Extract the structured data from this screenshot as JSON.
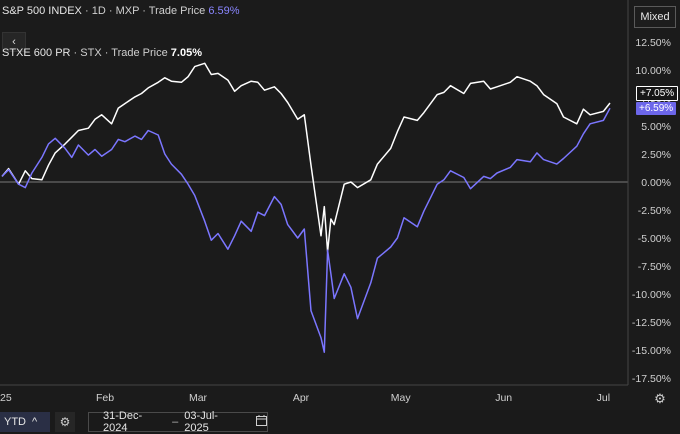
{
  "legend": {
    "spx": {
      "name": "S&P 500 INDEX",
      "sep1": "·",
      "interval": "1D",
      "sep2": "·",
      "exchange": "MXP",
      "sep3": "·",
      "field": "Trade Price",
      "value": "6.59%"
    },
    "stxe": {
      "name": "STXE 600 PR",
      "sep1": "·",
      "exchange": "STX",
      "sep2": "·",
      "field": "Trade Price",
      "value": "7.05%"
    }
  },
  "controls": {
    "mode": "Mixed",
    "collapse_icon": "‹",
    "period": "YTD",
    "period_icon": "^",
    "date_from": "31-Dec-2024",
    "date_sep": "–",
    "date_to": "03-Jul-2025"
  },
  "badges": {
    "stxe_last": "+7.05%",
    "spx_last": "+6.59%"
  },
  "colors": {
    "background": "#1b1b1b",
    "spx": "#7b76ff",
    "stxe": "#ffffff",
    "zero_line": "#9a9a9a"
  },
  "chart_data": {
    "type": "line",
    "x_ticks": [
      "25",
      "Feb",
      "Mar",
      "Apr",
      "May",
      "Jun",
      "Jul"
    ],
    "y_ticks": [
      "12.50%",
      "10.00%",
      "7.50%",
      "5.00%",
      "2.50%",
      "0.00%",
      "-2.50%",
      "-5.00%",
      "-7.50%",
      "-10.00%",
      "-12.50%",
      "-15.00%",
      "-17.50%"
    ],
    "ylim": [
      -17.5,
      12.5
    ],
    "x_range": [
      "2025-01-01",
      "2025-07-03"
    ],
    "series": [
      {
        "name": "STXE 600 PR",
        "x": [
          "2025-01-01",
          "2025-01-03",
          "2025-01-06",
          "2025-01-08",
          "2025-01-10",
          "2025-01-13",
          "2025-01-15",
          "2025-01-17",
          "2025-01-20",
          "2025-01-22",
          "2025-01-24",
          "2025-01-27",
          "2025-01-29",
          "2025-01-31",
          "2025-02-03",
          "2025-02-05",
          "2025-02-07",
          "2025-02-10",
          "2025-02-12",
          "2025-02-14",
          "2025-02-17",
          "2025-02-19",
          "2025-02-21",
          "2025-02-24",
          "2025-02-26",
          "2025-02-28",
          "2025-03-03",
          "2025-03-05",
          "2025-03-07",
          "2025-03-10",
          "2025-03-12",
          "2025-03-14",
          "2025-03-17",
          "2025-03-19",
          "2025-03-21",
          "2025-03-24",
          "2025-03-26",
          "2025-03-28",
          "2025-03-31",
          "2025-04-02",
          "2025-04-04",
          "2025-04-07",
          "2025-04-08",
          "2025-04-09",
          "2025-04-10",
          "2025-04-11",
          "2025-04-14",
          "2025-04-16",
          "2025-04-18",
          "2025-04-22",
          "2025-04-24",
          "2025-04-28",
          "2025-04-30",
          "2025-05-02",
          "2025-05-06",
          "2025-05-08",
          "2025-05-12",
          "2025-05-14",
          "2025-05-16",
          "2025-05-20",
          "2025-05-22",
          "2025-05-26",
          "2025-05-28",
          "2025-05-30",
          "2025-06-03",
          "2025-06-05",
          "2025-06-09",
          "2025-06-11",
          "2025-06-13",
          "2025-06-17",
          "2025-06-19",
          "2025-06-23",
          "2025-06-25",
          "2025-06-27",
          "2025-07-01",
          "2025-07-03"
        ],
        "y": [
          0.5,
          1.2,
          -0.2,
          1.0,
          0.3,
          0.2,
          1.5,
          2.6,
          3.4,
          4.0,
          4.6,
          4.8,
          5.6,
          6.0,
          5.2,
          6.6,
          7.0,
          7.6,
          7.9,
          8.4,
          8.9,
          9.3,
          9.0,
          8.9,
          9.4,
          10.3,
          10.6,
          9.6,
          9.7,
          9.1,
          8.1,
          8.6,
          9.0,
          8.9,
          8.2,
          8.5,
          7.9,
          7.1,
          5.6,
          6.0,
          1.5,
          -4.8,
          -2.2,
          -6.2,
          -3.3,
          -3.8,
          -0.2,
          0.0,
          -0.5,
          0.2,
          1.6,
          3.0,
          4.5,
          5.8,
          5.5,
          6.2,
          7.8,
          8.0,
          8.6,
          7.9,
          8.8,
          9.0,
          8.3,
          8.5,
          8.9,
          9.4,
          9.0,
          8.6,
          7.8,
          7.0,
          5.8,
          5.2,
          6.5,
          6.0,
          6.3,
          7.05
        ]
      },
      {
        "name": "S&P 500 INDEX",
        "x": [
          "2025-01-01",
          "2025-01-03",
          "2025-01-06",
          "2025-01-08",
          "2025-01-10",
          "2025-01-13",
          "2025-01-15",
          "2025-01-17",
          "2025-01-20",
          "2025-01-22",
          "2025-01-24",
          "2025-01-27",
          "2025-01-29",
          "2025-01-31",
          "2025-02-03",
          "2025-02-05",
          "2025-02-07",
          "2025-02-10",
          "2025-02-12",
          "2025-02-14",
          "2025-02-17",
          "2025-02-19",
          "2025-02-21",
          "2025-02-24",
          "2025-02-26",
          "2025-02-28",
          "2025-03-03",
          "2025-03-05",
          "2025-03-07",
          "2025-03-10",
          "2025-03-12",
          "2025-03-14",
          "2025-03-17",
          "2025-03-19",
          "2025-03-21",
          "2025-03-24",
          "2025-03-26",
          "2025-03-28",
          "2025-03-31",
          "2025-04-02",
          "2025-04-04",
          "2025-04-07",
          "2025-04-08",
          "2025-04-09",
          "2025-04-10",
          "2025-04-11",
          "2025-04-14",
          "2025-04-16",
          "2025-04-18",
          "2025-04-22",
          "2025-04-24",
          "2025-04-28",
          "2025-04-30",
          "2025-05-02",
          "2025-05-06",
          "2025-05-08",
          "2025-05-12",
          "2025-05-14",
          "2025-05-16",
          "2025-05-20",
          "2025-05-22",
          "2025-05-26",
          "2025-05-28",
          "2025-05-30",
          "2025-06-03",
          "2025-06-05",
          "2025-06-09",
          "2025-06-11",
          "2025-06-13",
          "2025-06-17",
          "2025-06-19",
          "2025-06-23",
          "2025-06-25",
          "2025-06-27",
          "2025-07-01",
          "2025-07-03"
        ],
        "y": [
          0.5,
          1.1,
          -0.2,
          -0.5,
          0.8,
          2.2,
          3.4,
          3.9,
          3.0,
          2.2,
          3.3,
          2.4,
          2.9,
          2.3,
          2.9,
          3.8,
          3.6,
          4.1,
          3.8,
          4.6,
          4.2,
          2.5,
          1.6,
          0.7,
          -0.2,
          -1.2,
          -3.5,
          -5.2,
          -4.6,
          -6.0,
          -4.8,
          -3.5,
          -4.4,
          -2.7,
          -3.0,
          -1.3,
          -2.0,
          -3.8,
          -5.0,
          -4.2,
          -11.5,
          -13.9,
          -15.2,
          -6.1,
          -8.2,
          -10.4,
          -8.2,
          -9.4,
          -12.2,
          -9.0,
          -6.8,
          -5.8,
          -5.0,
          -3.2,
          -4.0,
          -2.6,
          -0.2,
          0.2,
          1.0,
          0.4,
          -0.6,
          0.5,
          0.3,
          0.8,
          1.3,
          2.0,
          1.8,
          2.6,
          2.0,
          1.6,
          2.1,
          3.2,
          4.3,
          5.2,
          5.5,
          6.59
        ]
      }
    ]
  }
}
